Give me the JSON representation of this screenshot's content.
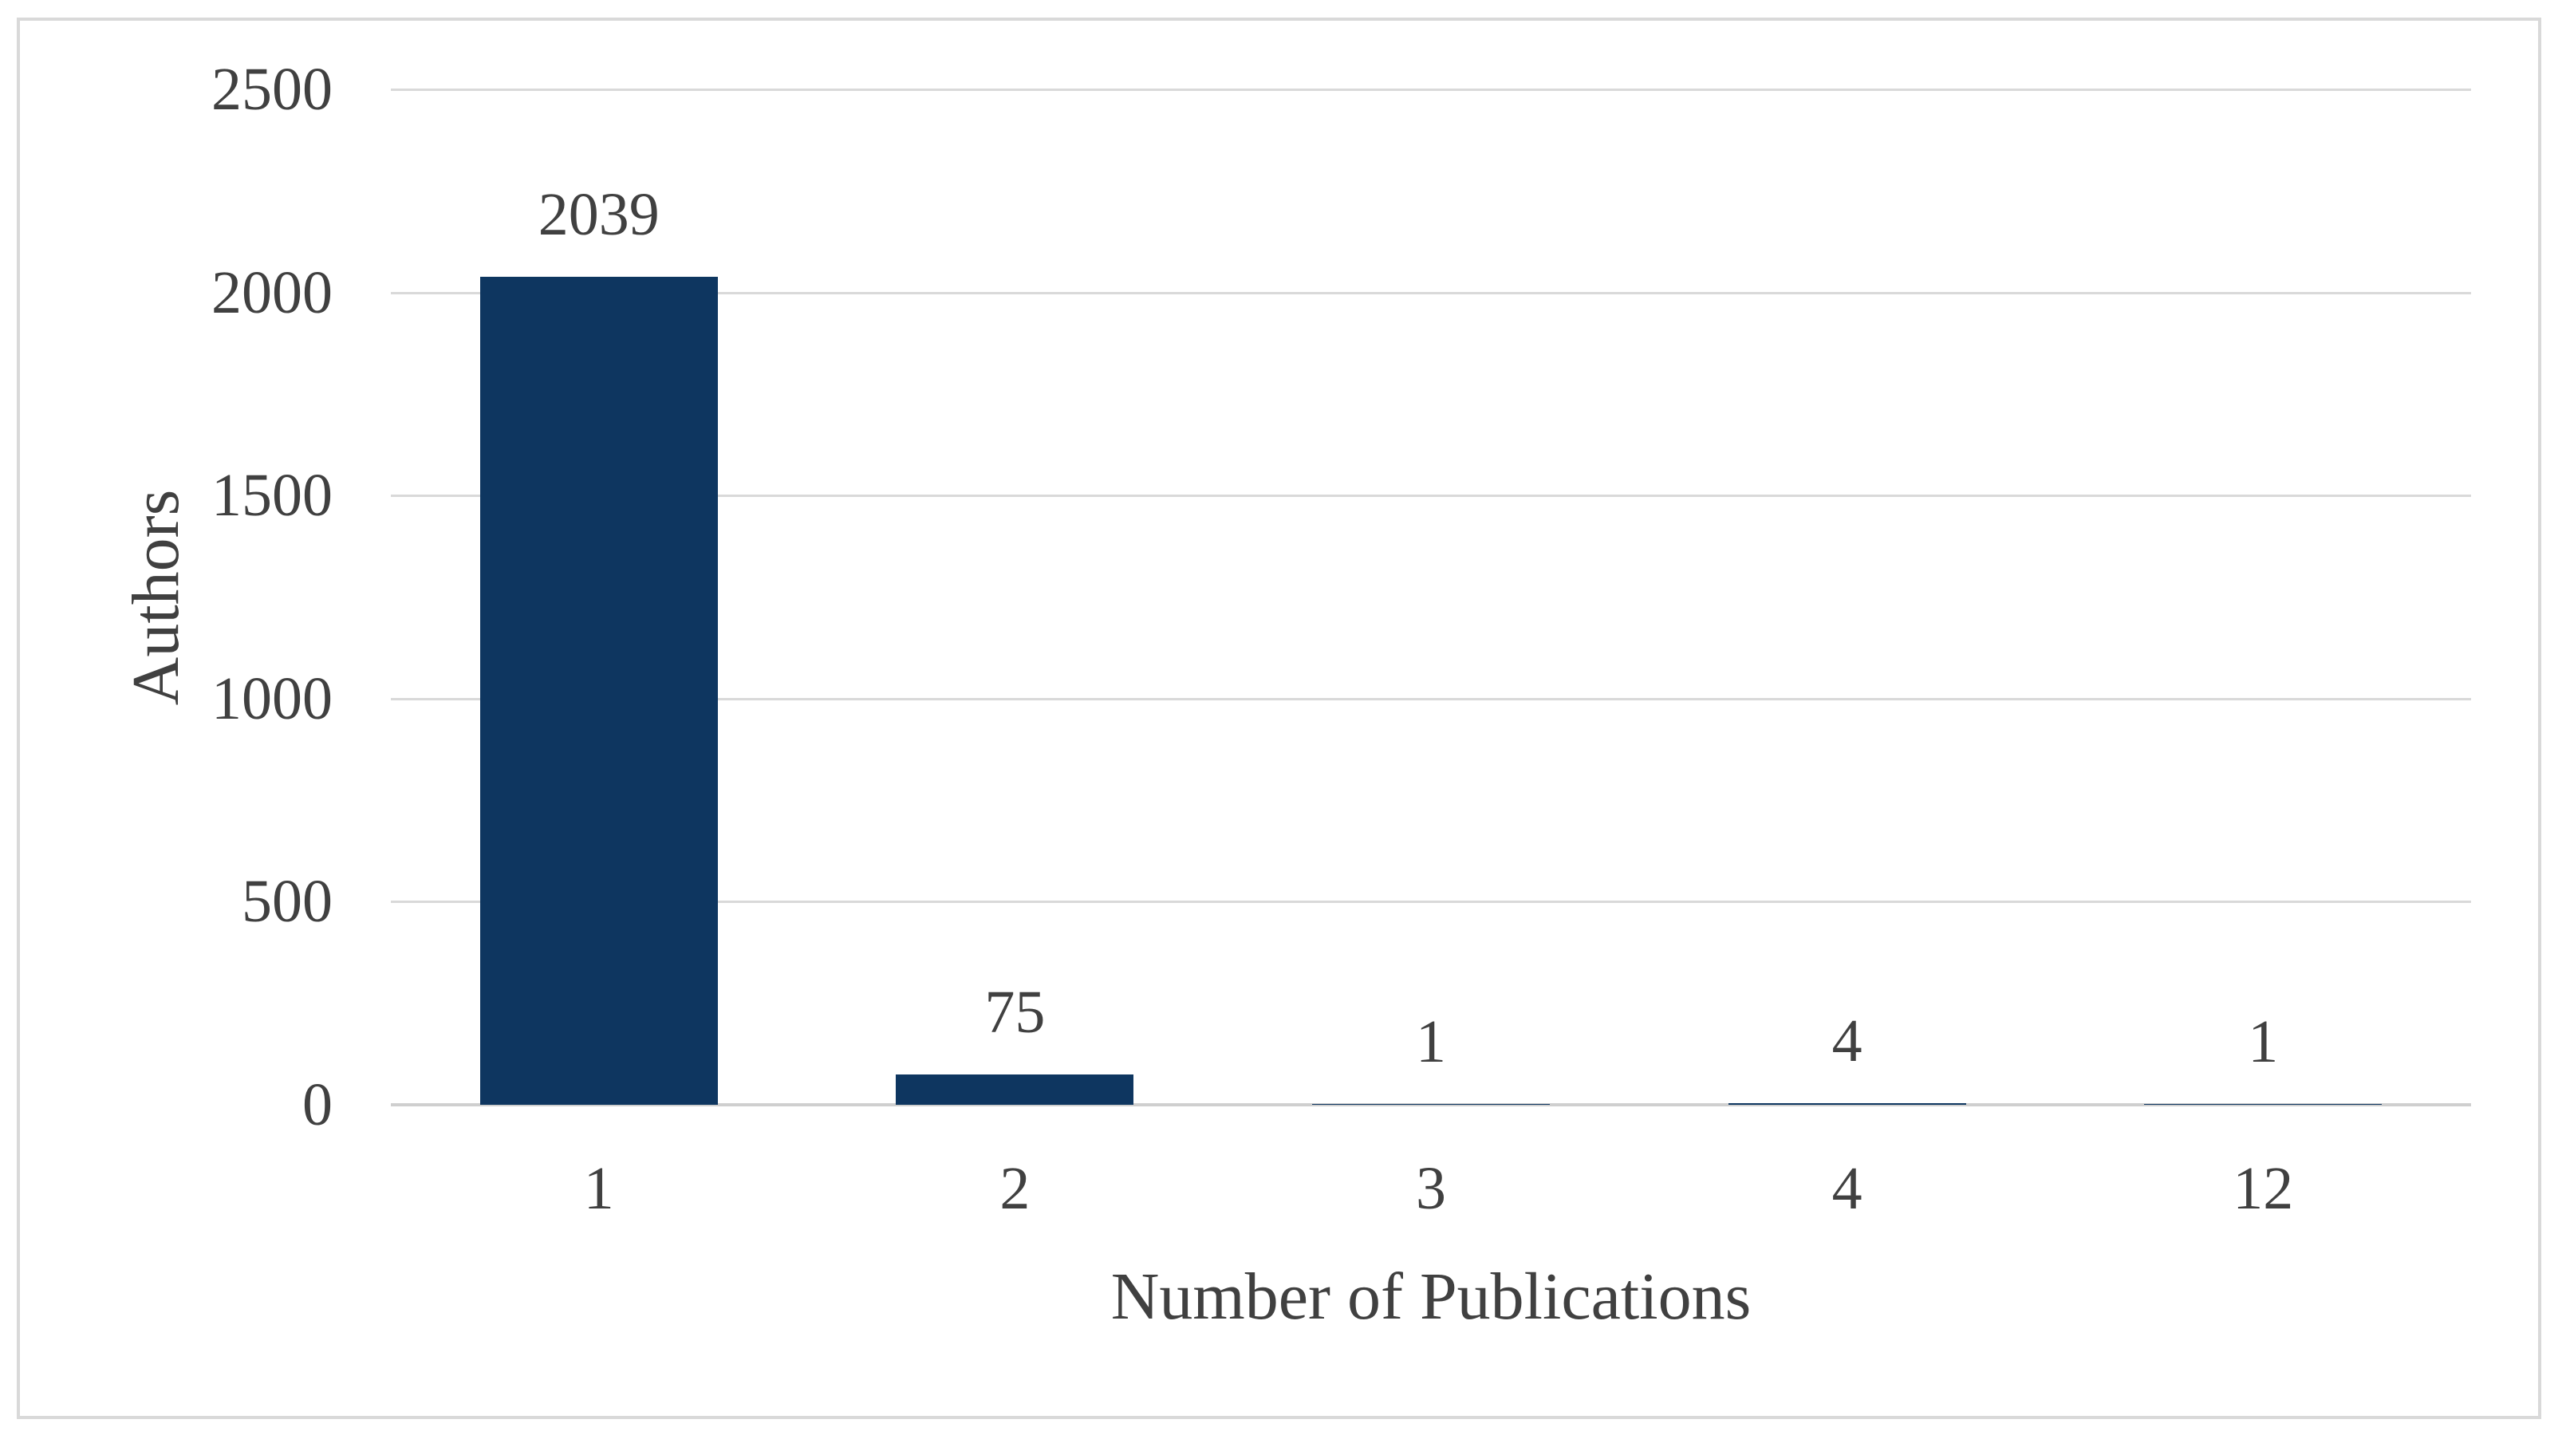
{
  "chart_data": {
    "type": "bar",
    "title": "",
    "xlabel": "Number of Publications",
    "ylabel": "Authors",
    "categories": [
      "1",
      "2",
      "3",
      "4",
      "12"
    ],
    "values": [
      2039,
      75,
      1,
      4,
      1
    ],
    "data_labels": [
      "2039",
      "75",
      "1",
      "4",
      "1"
    ],
    "yticks": [
      0,
      500,
      1000,
      1500,
      2000,
      2500
    ],
    "ylim": [
      0,
      2500
    ],
    "grid": true,
    "legend": false,
    "bar_color": "#0E3660",
    "gridline_color": "#D9D9D9",
    "axis_line_color": "#CFCFCF",
    "text_color": "#404040",
    "border_color": "#D9D9D9",
    "background": "#FFFFFF"
  }
}
